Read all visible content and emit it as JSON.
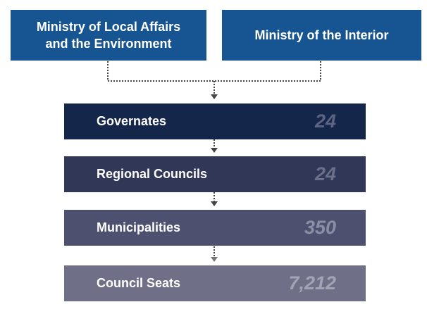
{
  "ministries": [
    {
      "label": "Ministry of Local Affairs and the Environment",
      "color": "#175592"
    },
    {
      "label": "Ministry of the Interior",
      "color": "#175592"
    }
  ],
  "tiers": [
    {
      "label": "Governates",
      "value": "24",
      "color": "#14264a",
      "value_color": "#5d6481"
    },
    {
      "label": "Regional Councils",
      "value": "24",
      "color": "#313857",
      "value_color": "#6b6f89"
    },
    {
      "label": "Municipalities",
      "value": "350",
      "color": "#4e5070",
      "value_color": "#8c8ea5"
    },
    {
      "label": "Council Seats",
      "value": "7,212",
      "color": "#6f6f88",
      "value_color": "#a3a3b6"
    }
  ]
}
